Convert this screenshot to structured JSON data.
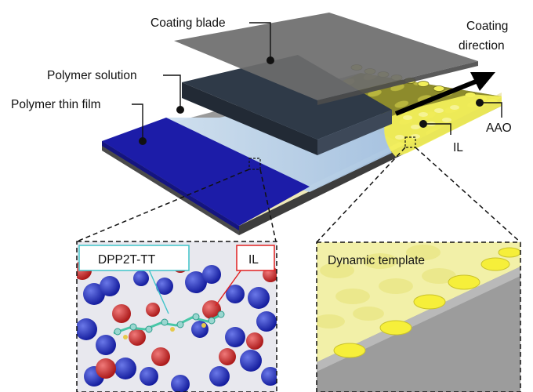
{
  "labels": {
    "coating_blade": "Coating blade",
    "polymer_solution": "Polymer solution",
    "polymer_thin_film": "Polymer thin film",
    "coating_direction_line1": "Coating",
    "coating_direction_line2": "direction",
    "aao": "AAO",
    "il": "IL",
    "dpp2t_tt": "DPP2T-TT",
    "il_inset": "IL",
    "dynamic_template": "Dynamic template"
  },
  "colors": {
    "polymer_film": "#1c1ca8",
    "polymer_solution": "#b9d3ea",
    "coating_blade": "#6c6c6c",
    "ionic_liquid": "#f2ef5a",
    "substrate": "#5a5a5a",
    "dpp_box": "#3fc3c9",
    "il_box": "#e02020",
    "molecule_red": "#d42a2a",
    "molecule_blue": "#1f2fb6"
  }
}
